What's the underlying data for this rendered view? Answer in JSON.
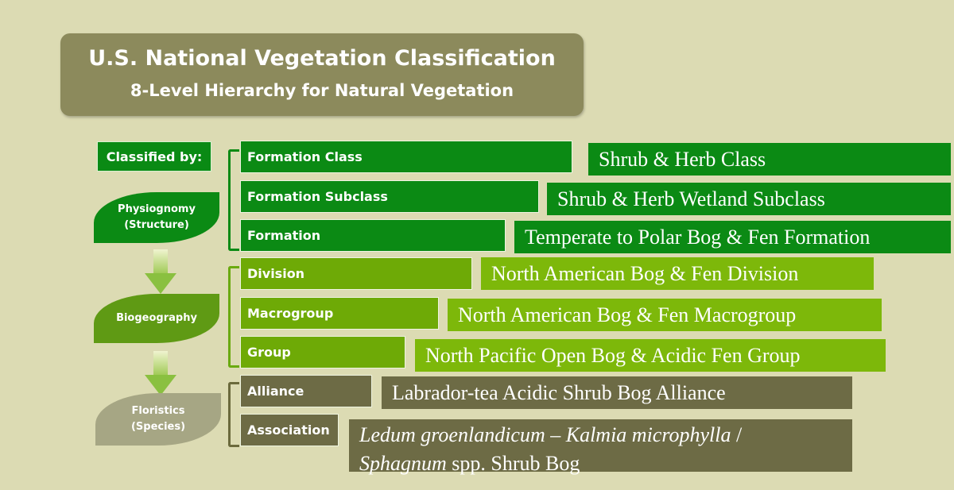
{
  "title": {
    "main": "U.S. National Vegetation Classification",
    "sub": "8-Level Hierarchy for Natural Vegetation"
  },
  "classified_by": "Classified by:",
  "criteria": {
    "physiognomy": [
      "Physiognomy",
      "(Structure)"
    ],
    "biogeography": "Biogeography",
    "floristics": [
      "Floristics",
      "(Species)"
    ]
  },
  "levels": [
    "Formation Class",
    "Formation Subclass",
    "Formation",
    "Division",
    "Macrogroup",
    "Group",
    "Alliance",
    "Association"
  ],
  "examples": [
    "Shrub & Herb Class",
    "Shrub & Herb Wetland Subclass",
    "Temperate to Polar Bog & Fen Formation",
    "North American Bog & Fen Division",
    "North American Bog & Fen Macrogroup",
    "North Pacific Open Bog & Acidic Fen Group",
    "Labrador-tea Acidic Shrub Bog Alliance"
  ],
  "association_example": {
    "genus1": "Ledum groenlandicum",
    "dash": " – ",
    "genus2": "Kalmia microphylla",
    "slash": " /",
    "genus3": "Sphagnum",
    "rest": " spp. Shrub Bog"
  },
  "colors": {
    "physiognomy": "#0b8a14",
    "biogeography": "#6eaa06",
    "floristics": "#6d6b45",
    "title": "#8c8a5c",
    "background": "#dcdbb3"
  }
}
